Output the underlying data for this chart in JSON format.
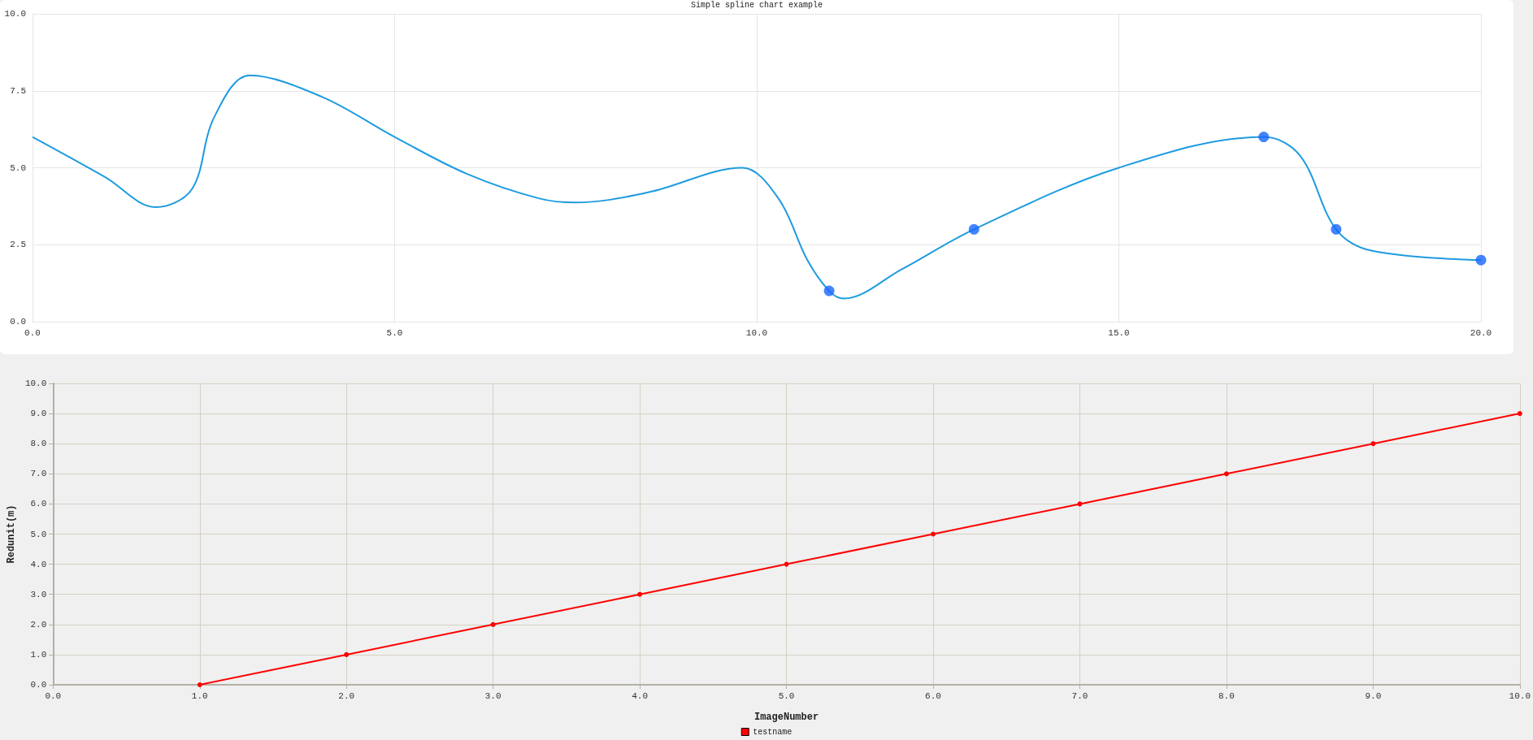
{
  "chart_data": [
    {
      "type": "line",
      "title": "Simple spline chart example",
      "grid": true,
      "marker": "none",
      "xlim": [
        0,
        20
      ],
      "xticks": [
        {
          "value": 0,
          "label": "0.0"
        },
        {
          "value": 5,
          "label": "5.0"
        },
        {
          "value": 10,
          "label": "10.0"
        },
        {
          "value": 15,
          "label": "15.0"
        },
        {
          "value": 20,
          "label": "20.0"
        }
      ],
      "ylim": [
        0,
        10
      ],
      "yticks": [
        {
          "value": 0,
          "label": "0.0"
        },
        {
          "value": 2.5,
          "label": "2.5"
        },
        {
          "value": 5,
          "label": "5.0"
        },
        {
          "value": 7.5,
          "label": "7.5"
        },
        {
          "value": 10,
          "label": "10.0"
        }
      ],
      "series": [
        {
          "color": "#1e9be0",
          "x": [
            0,
            1,
            1.7,
            2.2,
            2.5,
            3,
            4,
            5,
            6,
            7,
            7.5,
            8.5,
            9.8,
            10.3,
            10.7,
            11,
            11.2,
            12,
            13,
            15,
            17,
            17.5,
            18,
            18.5,
            20
          ],
          "values": [
            6,
            4.7,
            3.72,
            4.3,
            6.6,
            8,
            7.3,
            6,
            4.8,
            4,
            3.87,
            4.2,
            5,
            4,
            2,
            1,
            0.75,
            1.7,
            3,
            5,
            6,
            5.4,
            3,
            2.3,
            2
          ]
        },
        {
          "type": "scatter",
          "color": "#1565ff",
          "marker": "circle",
          "x": [
            11,
            13,
            17,
            18,
            20
          ],
          "values": [
            1,
            3,
            6,
            3,
            2
          ]
        }
      ]
    },
    {
      "type": "line",
      "xlabel": "ImageNumber",
      "ylabel": "Redunit(m)",
      "grid": true,
      "marker": "circle",
      "legend": "bottom",
      "xlim": [
        0,
        10
      ],
      "xticks": [
        {
          "value": 0,
          "label": "0.0"
        },
        {
          "value": 1,
          "label": "1.0"
        },
        {
          "value": 2,
          "label": "2.0"
        },
        {
          "value": 3,
          "label": "3.0"
        },
        {
          "value": 4,
          "label": "4.0"
        },
        {
          "value": 5,
          "label": "5.0"
        },
        {
          "value": 6,
          "label": "6.0"
        },
        {
          "value": 7,
          "label": "7.0"
        },
        {
          "value": 8,
          "label": "8.0"
        },
        {
          "value": 9,
          "label": "9.0"
        },
        {
          "value": 10,
          "label": "10.0"
        }
      ],
      "ylim": [
        0,
        10
      ],
      "yticks": [
        {
          "value": 0,
          "label": "0.0"
        },
        {
          "value": 1,
          "label": "1.0"
        },
        {
          "value": 2,
          "label": "2.0"
        },
        {
          "value": 3,
          "label": "3.0"
        },
        {
          "value": 4,
          "label": "4.0"
        },
        {
          "value": 5,
          "label": "5.0"
        },
        {
          "value": 6,
          "label": "6.0"
        },
        {
          "value": 7,
          "label": "7.0"
        },
        {
          "value": 8,
          "label": "8.0"
        },
        {
          "value": 9,
          "label": "9.0"
        },
        {
          "value": 10,
          "label": "10.0"
        }
      ],
      "series": [
        {
          "name": "testname",
          "color": "#ff0000",
          "x": [
            1,
            2,
            3,
            4,
            5,
            6,
            7,
            8,
            9,
            10
          ],
          "values": [
            0,
            1,
            2,
            3,
            4,
            5,
            6,
            7,
            8,
            9
          ]
        }
      ]
    }
  ]
}
